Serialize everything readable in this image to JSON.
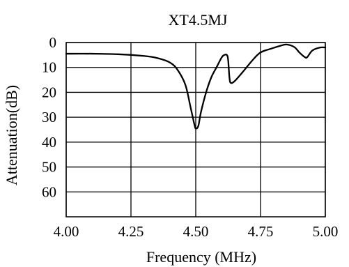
{
  "chart_data": {
    "type": "line",
    "title": "XT4.5MJ",
    "xlabel": "Frequency (MHz)",
    "ylabel": "Attenuation(dB)",
    "xlim": [
      4.0,
      5.0
    ],
    "ylim": [
      0,
      70
    ],
    "y_inverted": true,
    "x_ticks": [
      4.0,
      4.25,
      4.5,
      4.75,
      5.0
    ],
    "x_tick_labels": [
      "4.00",
      "4.25",
      "4.50",
      "4.75",
      "5.00"
    ],
    "y_ticks": [
      0,
      10,
      20,
      30,
      40,
      50,
      60
    ],
    "y_tick_labels": [
      "0",
      "10",
      "20",
      "30",
      "40",
      "50",
      "60"
    ],
    "grid": true,
    "line_color": "#000000",
    "series": [
      {
        "points": [
          [
            4.0,
            4.5
          ],
          [
            4.1,
            4.5
          ],
          [
            4.2,
            4.7
          ],
          [
            4.3,
            5.4
          ],
          [
            4.35,
            6.2
          ],
          [
            4.4,
            8.0
          ],
          [
            4.43,
            11.0
          ],
          [
            4.46,
            17.0
          ],
          [
            4.48,
            26.0
          ],
          [
            4.495,
            33.0
          ],
          [
            4.5,
            34.5
          ],
          [
            4.51,
            33.5
          ],
          [
            4.52,
            28.0
          ],
          [
            4.54,
            20.0
          ],
          [
            4.56,
            14.0
          ],
          [
            4.58,
            10.0
          ],
          [
            4.6,
            6.0
          ],
          [
            4.61,
            5.0
          ],
          [
            4.62,
            5.0
          ],
          [
            4.625,
            7.0
          ],
          [
            4.63,
            14.0
          ],
          [
            4.635,
            16.2
          ],
          [
            4.65,
            15.5
          ],
          [
            4.68,
            12.0
          ],
          [
            4.72,
            7.0
          ],
          [
            4.75,
            4.0
          ],
          [
            4.79,
            2.5
          ],
          [
            4.82,
            1.5
          ],
          [
            4.85,
            0.8
          ],
          [
            4.88,
            1.8
          ],
          [
            4.9,
            4.0
          ],
          [
            4.92,
            5.8
          ],
          [
            4.93,
            5.9
          ],
          [
            4.95,
            3.2
          ],
          [
            4.98,
            2.0
          ],
          [
            5.0,
            2.0
          ]
        ]
      }
    ]
  }
}
